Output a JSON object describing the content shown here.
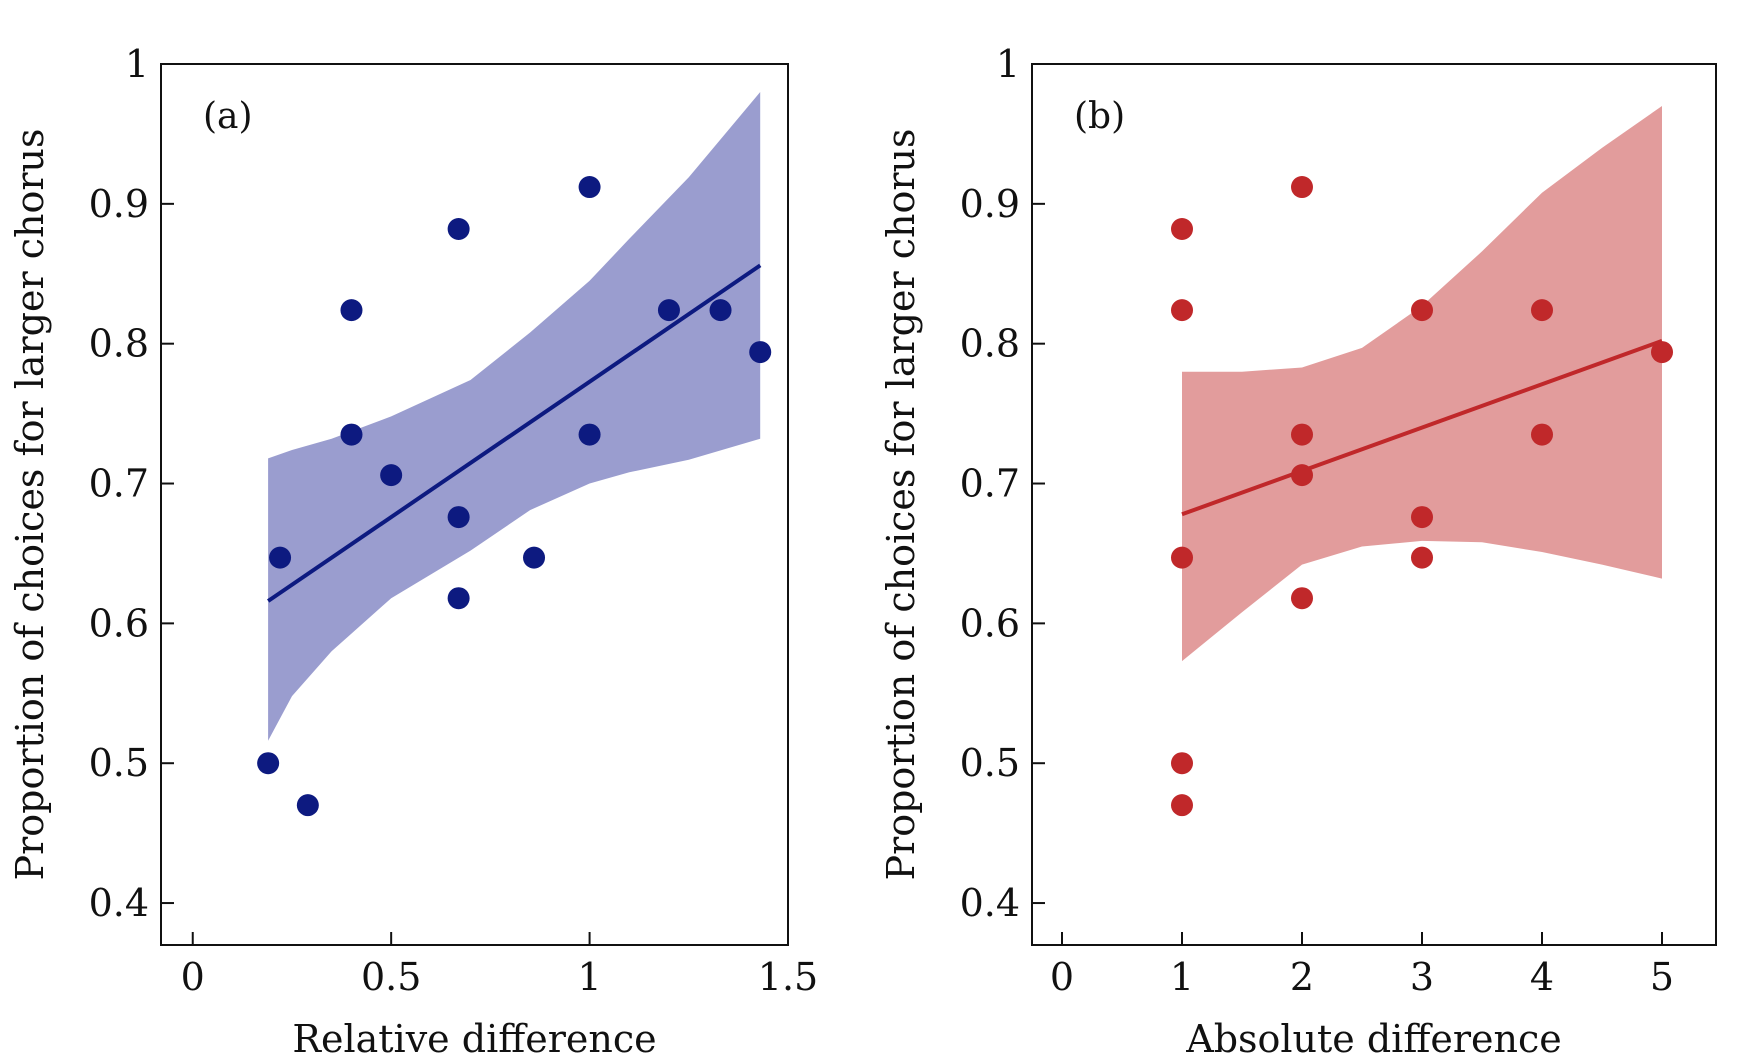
{
  "chart_data": [
    {
      "type": "scatter",
      "panel_label": "(a)",
      "xlabel": "Relative difference",
      "ylabel": "Proportion of choices for larger chorus",
      "xlim": [
        -0.08,
        1.5
      ],
      "ylim": [
        0.37,
        1.0
      ],
      "xticks": [
        0,
        0.5,
        1,
        1.5
      ],
      "xtick_labels": [
        "0",
        "0.5",
        "1",
        "1.5"
      ],
      "yticks": [
        0.4,
        0.5,
        0.6,
        0.7,
        0.8,
        0.9,
        1
      ],
      "ytick_labels": [
        "0.4",
        "0.5",
        "0.6",
        "0.7",
        "0.8",
        "0.9",
        "1"
      ],
      "point_color": "#0d1a80",
      "line_color": "#0d1a80",
      "band_color": "#9a9dcf",
      "points": {
        "x": [
          0.19,
          0.22,
          0.29,
          0.4,
          0.4,
          0.5,
          0.67,
          0.67,
          0.67,
          0.86,
          1.0,
          1.0,
          1.2,
          1.33,
          1.43
        ],
        "y": [
          0.5,
          0.647,
          0.47,
          0.824,
          0.735,
          0.706,
          0.882,
          0.676,
          0.618,
          0.647,
          0.912,
          0.735,
          0.824,
          0.824,
          0.794
        ]
      },
      "fit_line": {
        "x": [
          0.19,
          1.43
        ],
        "y": [
          0.616,
          0.856
        ]
      },
      "band": {
        "x": [
          0.19,
          0.25,
          0.35,
          0.5,
          0.7,
          0.85,
          1.0,
          1.1,
          1.25,
          1.43
        ],
        "upper": [
          0.718,
          0.724,
          0.732,
          0.748,
          0.774,
          0.808,
          0.845,
          0.875,
          0.919,
          0.98
        ],
        "lower": [
          0.516,
          0.548,
          0.58,
          0.618,
          0.652,
          0.681,
          0.7,
          0.708,
          0.717,
          0.732
        ]
      }
    },
    {
      "type": "scatter",
      "panel_label": "(b)",
      "xlabel": "Absolute difference",
      "ylabel": "Proportion of choices for larger chorus",
      "xlim": [
        -0.25,
        5.45
      ],
      "ylim": [
        0.37,
        1.0
      ],
      "xticks": [
        0,
        1,
        2,
        3,
        4,
        5
      ],
      "xtick_labels": [
        "0",
        "1",
        "2",
        "3",
        "4",
        "5"
      ],
      "yticks": [
        0.4,
        0.5,
        0.6,
        0.7,
        0.8,
        0.9,
        1
      ],
      "ytick_labels": [
        "0.4",
        "0.5",
        "0.6",
        "0.7",
        "0.8",
        "0.9",
        "1"
      ],
      "point_color": "#c0282a",
      "line_color": "#c0282a",
      "band_color": "#e29c9c",
      "points": {
        "x": [
          1,
          1,
          1,
          1,
          1,
          2,
          2,
          2,
          2,
          3,
          3,
          3,
          4,
          4,
          5
        ],
        "y": [
          0.882,
          0.824,
          0.647,
          0.5,
          0.47,
          0.912,
          0.735,
          0.706,
          0.618,
          0.824,
          0.676,
          0.647,
          0.824,
          0.735,
          0.794
        ]
      },
      "fit_line": {
        "x": [
          1,
          5
        ],
        "y": [
          0.678,
          0.802
        ]
      },
      "band": {
        "x": [
          1,
          1.5,
          2,
          2.5,
          3,
          3.5,
          4,
          4.5,
          5
        ],
        "upper": [
          0.78,
          0.78,
          0.783,
          0.797,
          0.827,
          0.866,
          0.908,
          0.94,
          0.97
        ],
        "lower": [
          0.573,
          0.608,
          0.642,
          0.655,
          0.659,
          0.658,
          0.651,
          0.642,
          0.632
        ]
      }
    }
  ]
}
